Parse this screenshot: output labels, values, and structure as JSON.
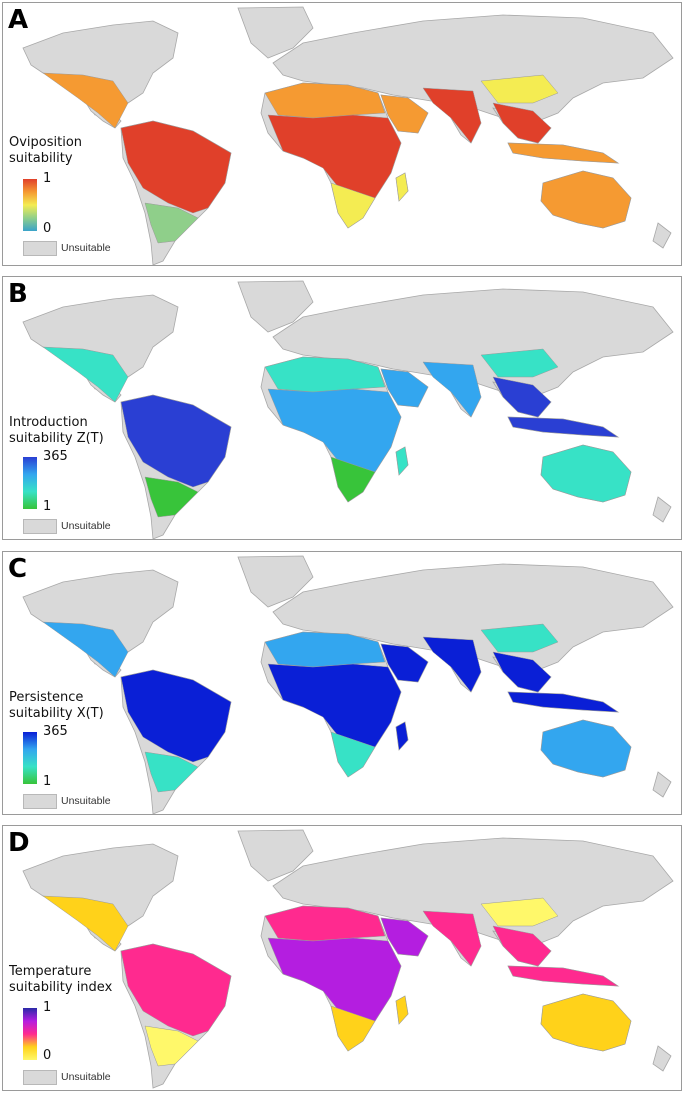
{
  "colors": {
    "land_unsuitable": "#d9d9d9",
    "coast": "#a8a8a8",
    "panel_A": [
      "#3aa3c9",
      "#8fcf8a",
      "#f4ec52",
      "#f59a32",
      "#e0402a"
    ],
    "panel_B": [
      "#38c43a",
      "#37e2c6",
      "#33a6ef",
      "#2a3fd3"
    ],
    "panel_C": [
      "#38c43a",
      "#37e2c6",
      "#33a6ef",
      "#0a1fd6"
    ],
    "panel_D": [
      "#fff86a",
      "#ffd21a",
      "#ff2a8f",
      "#b41ee0",
      "#2a2aa8"
    ]
  },
  "panels": [
    {
      "letter": "A",
      "legend_line1": "Oviposition",
      "legend_line2": "suitability",
      "max": "1",
      "min": "0",
      "unsuitable": "Unsuitable"
    },
    {
      "letter": "B",
      "legend_line1": "Introduction",
      "legend_line2": "suitability Z(T)",
      "max": "365",
      "min": "1",
      "unsuitable": "Unsuitable"
    },
    {
      "letter": "C",
      "legend_line1": "Persistence",
      "legend_line2": "suitability X(T)",
      "max": "365",
      "min": "1",
      "unsuitable": "Unsuitable"
    },
    {
      "letter": "D",
      "legend_line1": "Temperature",
      "legend_line2": "suitability index",
      "max": "1",
      "min": "0",
      "unsuitable": "Unsuitable"
    }
  ]
}
